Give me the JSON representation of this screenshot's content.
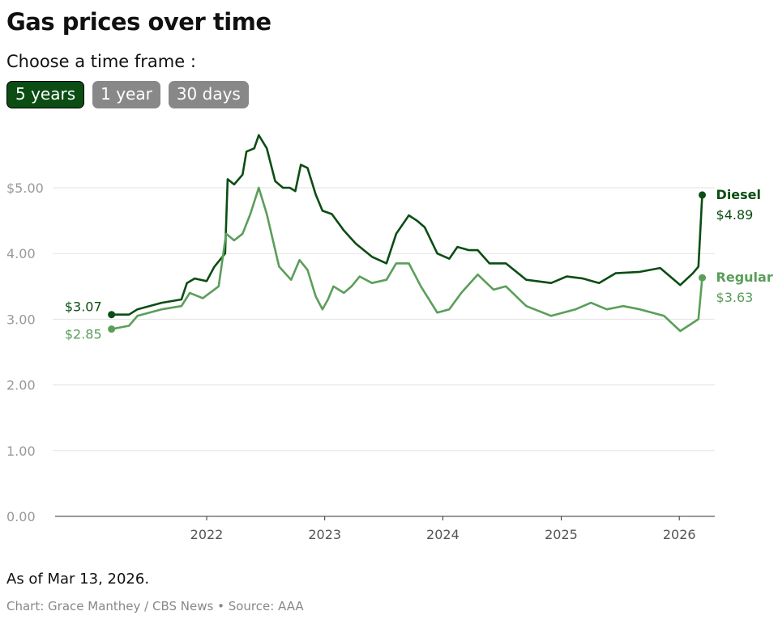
{
  "title": "Gas prices over time",
  "prompt": "Choose a time frame :",
  "buttons": [
    {
      "label": "5 years",
      "active": true
    },
    {
      "label": "1 year",
      "active": false
    },
    {
      "label": "30 days",
      "active": false
    }
  ],
  "note": "As of Mar 13, 2026.",
  "credit": "Chart: Grace Manthey / CBS News • Source: AAA",
  "chart_data": {
    "type": "line",
    "title": "Gas prices over time",
    "ylim": [
      0,
      5.8
    ],
    "yticks": [
      "0.00",
      "1.00",
      "2.00",
      "3.00",
      "4.00",
      "$5.00"
    ],
    "ytick_values": [
      0,
      1,
      2,
      3,
      4,
      5
    ],
    "xticks": [
      "2022",
      "2023",
      "2024",
      "2025",
      "2026"
    ],
    "grid": true,
    "series": [
      {
        "name": "Diesel",
        "color": "#0b4d13",
        "start_label": "$3.07",
        "end_label": "$4.89",
        "points": [
          [
            "2021-03-13",
            3.07
          ],
          [
            "2021-05-06",
            3.07
          ],
          [
            "2021-06-01",
            3.15
          ],
          [
            "2021-08-15",
            3.25
          ],
          [
            "2021-10-15",
            3.3
          ],
          [
            "2021-11-01",
            3.55
          ],
          [
            "2021-11-25",
            3.62
          ],
          [
            "2022-01-01",
            3.58
          ],
          [
            "2022-01-25",
            3.8
          ],
          [
            "2022-02-27",
            4.0
          ],
          [
            "2022-03-07",
            5.13
          ],
          [
            "2022-03-27",
            5.05
          ],
          [
            "2022-04-22",
            5.2
          ],
          [
            "2022-05-04",
            5.55
          ],
          [
            "2022-05-28",
            5.6
          ],
          [
            "2022-06-11",
            5.8
          ],
          [
            "2022-07-06",
            5.6
          ],
          [
            "2022-08-01",
            5.1
          ],
          [
            "2022-08-25",
            5.0
          ],
          [
            "2022-09-15",
            5.0
          ],
          [
            "2022-10-02",
            4.95
          ],
          [
            "2022-10-19",
            5.35
          ],
          [
            "2022-11-09",
            5.3
          ],
          [
            "2022-12-04",
            4.9
          ],
          [
            "2022-12-25",
            4.65
          ],
          [
            "2023-01-23",
            4.6
          ],
          [
            "2023-03-01",
            4.35
          ],
          [
            "2023-04-07",
            4.15
          ],
          [
            "2023-05-27",
            3.95
          ],
          [
            "2023-07-11",
            3.85
          ],
          [
            "2023-08-10",
            4.3
          ],
          [
            "2023-09-18",
            4.58
          ],
          [
            "2023-10-13",
            4.5
          ],
          [
            "2023-11-06",
            4.4
          ],
          [
            "2023-12-15",
            4.0
          ],
          [
            "2024-01-21",
            3.92
          ],
          [
            "2024-02-15",
            4.1
          ],
          [
            "2024-03-22",
            4.05
          ],
          [
            "2024-04-18",
            4.05
          ],
          [
            "2024-05-24",
            3.85
          ],
          [
            "2024-07-14",
            3.85
          ],
          [
            "2024-09-15",
            3.6
          ],
          [
            "2024-12-01",
            3.55
          ],
          [
            "2025-01-18",
            3.65
          ],
          [
            "2025-03-09",
            3.62
          ],
          [
            "2025-04-28",
            3.55
          ],
          [
            "2025-06-18",
            3.7
          ],
          [
            "2025-09-01",
            3.72
          ],
          [
            "2025-11-03",
            3.78
          ],
          [
            "2026-01-04",
            3.52
          ],
          [
            "2026-02-12",
            3.7
          ],
          [
            "2026-03-01",
            3.8
          ],
          [
            "2026-03-13",
            4.89
          ]
        ]
      },
      {
        "name": "Regular",
        "color": "#5a9e5a",
        "start_label": "$2.85",
        "end_label": "$3.63",
        "points": [
          [
            "2021-03-13",
            2.85
          ],
          [
            "2021-05-06",
            2.9
          ],
          [
            "2021-06-01",
            3.05
          ],
          [
            "2021-08-15",
            3.15
          ],
          [
            "2021-10-15",
            3.2
          ],
          [
            "2021-11-10",
            3.4
          ],
          [
            "2021-12-20",
            3.32
          ],
          [
            "2022-02-07",
            3.5
          ],
          [
            "2022-03-02",
            4.3
          ],
          [
            "2022-03-27",
            4.2
          ],
          [
            "2022-04-22",
            4.3
          ],
          [
            "2022-05-16",
            4.6
          ],
          [
            "2022-06-11",
            5.0
          ],
          [
            "2022-07-06",
            4.6
          ],
          [
            "2022-08-13",
            3.8
          ],
          [
            "2022-09-19",
            3.6
          ],
          [
            "2022-10-15",
            3.9
          ],
          [
            "2022-11-09",
            3.75
          ],
          [
            "2022-12-04",
            3.35
          ],
          [
            "2022-12-25",
            3.15
          ],
          [
            "2023-01-11",
            3.3
          ],
          [
            "2023-01-28",
            3.5
          ],
          [
            "2023-03-01",
            3.4
          ],
          [
            "2023-03-25",
            3.5
          ],
          [
            "2023-04-19",
            3.65
          ],
          [
            "2023-05-27",
            3.55
          ],
          [
            "2023-07-11",
            3.6
          ],
          [
            "2023-08-10",
            3.85
          ],
          [
            "2023-09-18",
            3.85
          ],
          [
            "2023-10-25",
            3.5
          ],
          [
            "2023-12-15",
            3.1
          ],
          [
            "2024-01-21",
            3.15
          ],
          [
            "2024-02-27",
            3.4
          ],
          [
            "2024-04-18",
            3.68
          ],
          [
            "2024-06-06",
            3.45
          ],
          [
            "2024-07-14",
            3.5
          ],
          [
            "2024-09-15",
            3.2
          ],
          [
            "2024-12-01",
            3.05
          ],
          [
            "2025-02-14",
            3.15
          ],
          [
            "2025-04-03",
            3.25
          ],
          [
            "2025-05-22",
            3.15
          ],
          [
            "2025-07-12",
            3.2
          ],
          [
            "2025-09-01",
            3.15
          ],
          [
            "2025-11-15",
            3.05
          ],
          [
            "2026-01-04",
            2.82
          ],
          [
            "2026-03-01",
            3.0
          ],
          [
            "2026-03-13",
            3.63
          ]
        ]
      }
    ]
  }
}
